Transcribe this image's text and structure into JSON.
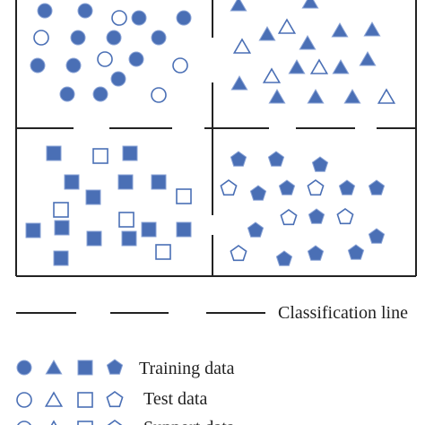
{
  "legend": {
    "line": "Classification line",
    "training": "Training data",
    "test": "Test data",
    "support": "Support data"
  }
}
